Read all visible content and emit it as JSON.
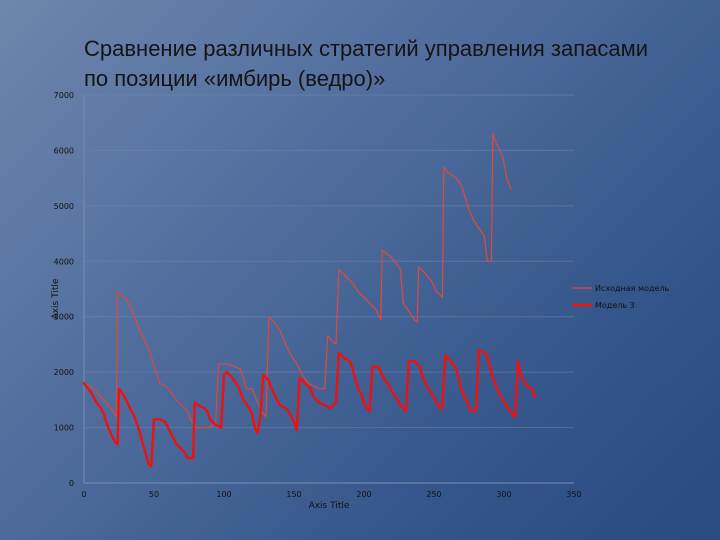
{
  "title_lines": [
    "Сравнение различных стратегий управления запасами",
    "по позиции «имбирь (ведро)»"
  ],
  "chart_data": {
    "type": "line",
    "title": "Сравнение различных стратегий управления запасами по позиции «имбирь (ведро)»",
    "xlabel": "Axis Title",
    "ylabel": "Axis Title",
    "xlim": [
      0,
      350
    ],
    "ylim": [
      0,
      7000
    ],
    "x_ticks": [
      0,
      50,
      100,
      150,
      200,
      250,
      300,
      350
    ],
    "y_ticks": [
      0,
      1000,
      2000,
      3000,
      4000,
      5000,
      6000,
      7000
    ],
    "grid": "horizontal",
    "legend_position": "right",
    "series": [
      {
        "name": "Исходная модель",
        "color": "#e0483c",
        "points": [
          [
            0,
            1800
          ],
          [
            4,
            1750
          ],
          [
            8,
            1680
          ],
          [
            12,
            1560
          ],
          [
            16,
            1450
          ],
          [
            20,
            1320
          ],
          [
            23,
            1200
          ],
          [
            24,
            3450
          ],
          [
            28,
            3380
          ],
          [
            32,
            3250
          ],
          [
            36,
            3000
          ],
          [
            40,
            2750
          ],
          [
            44,
            2550
          ],
          [
            48,
            2300
          ],
          [
            52,
            1950
          ],
          [
            54,
            1800
          ],
          [
            58,
            1750
          ],
          [
            62,
            1650
          ],
          [
            66,
            1500
          ],
          [
            70,
            1400
          ],
          [
            74,
            1300
          ],
          [
            76,
            1150
          ],
          [
            80,
            1000
          ],
          [
            88,
            1000
          ],
          [
            94,
            1050
          ],
          [
            96,
            2150
          ],
          [
            102,
            2150
          ],
          [
            108,
            2100
          ],
          [
            112,
            2050
          ],
          [
            116,
            1700
          ],
          [
            120,
            1700
          ],
          [
            124,
            1450
          ],
          [
            128,
            1250
          ],
          [
            130,
            1200
          ],
          [
            132,
            3000
          ],
          [
            136,
            2900
          ],
          [
            140,
            2750
          ],
          [
            144,
            2500
          ],
          [
            148,
            2300
          ],
          [
            152,
            2150
          ],
          [
            156,
            1950
          ],
          [
            160,
            1800
          ],
          [
            164,
            1750
          ],
          [
            168,
            1700
          ],
          [
            172,
            1700
          ],
          [
            174,
            2650
          ],
          [
            180,
            2500
          ],
          [
            182,
            3850
          ],
          [
            186,
            3750
          ],
          [
            192,
            3600
          ],
          [
            196,
            3450
          ],
          [
            200,
            3350
          ],
          [
            204,
            3250
          ],
          [
            208,
            3150
          ],
          [
            210,
            3050
          ],
          [
            212,
            2950
          ],
          [
            213,
            4200
          ],
          [
            218,
            4100
          ],
          [
            222,
            4000
          ],
          [
            226,
            3850
          ],
          [
            228,
            3250
          ],
          [
            232,
            3100
          ],
          [
            236,
            2950
          ],
          [
            238,
            2900
          ],
          [
            239,
            3900
          ],
          [
            243,
            3800
          ],
          [
            248,
            3650
          ],
          [
            252,
            3450
          ],
          [
            256,
            3350
          ],
          [
            257,
            5700
          ],
          [
            260,
            5600
          ],
          [
            266,
            5500
          ],
          [
            270,
            5350
          ],
          [
            274,
            5000
          ],
          [
            278,
            4750
          ],
          [
            282,
            4600
          ],
          [
            286,
            4450
          ],
          [
            288,
            4000
          ],
          [
            291,
            4000
          ],
          [
            292,
            6300
          ],
          [
            295,
            6100
          ],
          [
            299,
            5900
          ],
          [
            302,
            5500
          ],
          [
            305,
            5300
          ]
        ]
      },
      {
        "name": "Модель 3",
        "color": "#ee1111",
        "points": [
          [
            0,
            1800
          ],
          [
            3,
            1700
          ],
          [
            6,
            1600
          ],
          [
            9,
            1450
          ],
          [
            12,
            1350
          ],
          [
            14,
            1250
          ],
          [
            16,
            1100
          ],
          [
            18,
            950
          ],
          [
            20,
            850
          ],
          [
            22,
            750
          ],
          [
            24,
            700
          ],
          [
            25,
            1700
          ],
          [
            28,
            1600
          ],
          [
            32,
            1400
          ],
          [
            36,
            1200
          ],
          [
            38,
            1050
          ],
          [
            40,
            900
          ],
          [
            42,
            700
          ],
          [
            44,
            550
          ],
          [
            46,
            350
          ],
          [
            48,
            300
          ],
          [
            50,
            1150
          ],
          [
            54,
            1150
          ],
          [
            58,
            1100
          ],
          [
            62,
            900
          ],
          [
            66,
            700
          ],
          [
            70,
            600
          ],
          [
            72,
            550
          ],
          [
            74,
            450
          ],
          [
            78,
            450
          ],
          [
            79,
            1450
          ],
          [
            82,
            1400
          ],
          [
            86,
            1350
          ],
          [
            88,
            1300
          ],
          [
            90,
            1150
          ],
          [
            92,
            1100
          ],
          [
            94,
            1050
          ],
          [
            98,
            1000
          ],
          [
            100,
            1950
          ],
          [
            102,
            2000
          ],
          [
            106,
            1900
          ],
          [
            110,
            1750
          ],
          [
            114,
            1500
          ],
          [
            118,
            1350
          ],
          [
            120,
            1250
          ],
          [
            122,
            1000
          ],
          [
            124,
            900
          ],
          [
            126,
            1200
          ],
          [
            128,
            1950
          ],
          [
            132,
            1850
          ],
          [
            134,
            1700
          ],
          [
            138,
            1500
          ],
          [
            140,
            1400
          ],
          [
            144,
            1350
          ],
          [
            146,
            1300
          ],
          [
            148,
            1200
          ],
          [
            150,
            1100
          ],
          [
            152,
            950
          ],
          [
            154,
            1900
          ],
          [
            158,
            1800
          ],
          [
            162,
            1700
          ],
          [
            164,
            1550
          ],
          [
            168,
            1450
          ],
          [
            172,
            1400
          ],
          [
            176,
            1350
          ],
          [
            180,
            1450
          ],
          [
            182,
            2350
          ],
          [
            186,
            2250
          ],
          [
            190,
            2200
          ],
          [
            192,
            2050
          ],
          [
            194,
            1850
          ],
          [
            196,
            1700
          ],
          [
            198,
            1600
          ],
          [
            200,
            1450
          ],
          [
            202,
            1350
          ],
          [
            204,
            1300
          ],
          [
            206,
            2100
          ],
          [
            210,
            2100
          ],
          [
            214,
            1900
          ],
          [
            218,
            1750
          ],
          [
            220,
            1650
          ],
          [
            224,
            1500
          ],
          [
            226,
            1400
          ],
          [
            228,
            1350
          ],
          [
            230,
            1300
          ],
          [
            232,
            2200
          ],
          [
            236,
            2200
          ],
          [
            240,
            2100
          ],
          [
            242,
            1900
          ],
          [
            246,
            1700
          ],
          [
            250,
            1550
          ],
          [
            252,
            1450
          ],
          [
            254,
            1350
          ],
          [
            256,
            1350
          ],
          [
            258,
            2300
          ],
          [
            262,
            2200
          ],
          [
            266,
            2050
          ],
          [
            268,
            1850
          ],
          [
            270,
            1650
          ],
          [
            274,
            1450
          ],
          [
            276,
            1300
          ],
          [
            278,
            1300
          ],
          [
            280,
            1300
          ],
          [
            282,
            2400
          ],
          [
            286,
            2350
          ],
          [
            288,
            2300
          ],
          [
            290,
            2100
          ],
          [
            292,
            1900
          ],
          [
            296,
            1650
          ],
          [
            298,
            1550
          ],
          [
            300,
            1450
          ],
          [
            302,
            1400
          ],
          [
            304,
            1300
          ],
          [
            306,
            1250
          ],
          [
            307,
            1200
          ],
          [
            308,
            1200
          ],
          [
            310,
            2200
          ],
          [
            312,
            1950
          ],
          [
            316,
            1750
          ],
          [
            320,
            1700
          ],
          [
            322,
            1550
          ]
        ]
      }
    ]
  }
}
